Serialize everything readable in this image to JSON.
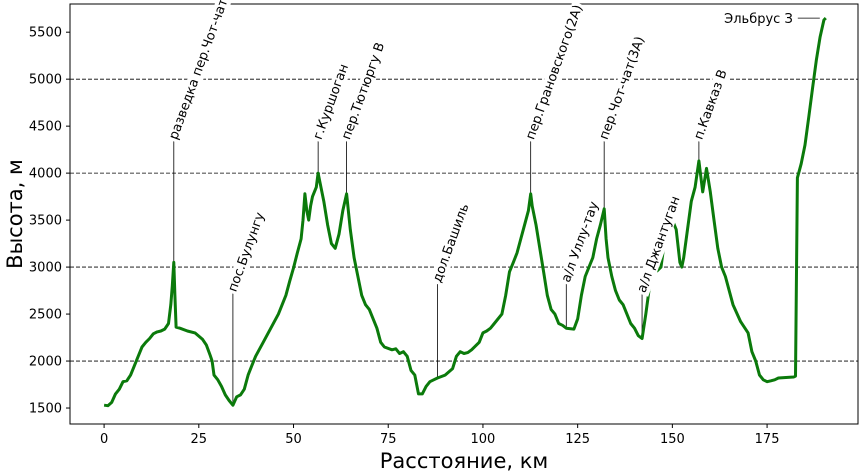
{
  "chart_data": {
    "type": "line",
    "xlabel": "Расстояние, км",
    "ylabel": "Высота, м",
    "xlim": [
      -9,
      199
    ],
    "ylim": [
      1330,
      5800
    ],
    "xticks": [
      0,
      25,
      50,
      75,
      100,
      125,
      150,
      175
    ],
    "yticks": [
      1500,
      2000,
      2500,
      3000,
      3500,
      4000,
      4500,
      5000,
      5500
    ],
    "dashed_gridlines_y": [
      2000,
      3000,
      4000,
      5000
    ],
    "line_color": "#0b7a0b",
    "series": [
      {
        "points": [
          [
            0,
            1530
          ],
          [
            1,
            1525
          ],
          [
            2,
            1560
          ],
          [
            3,
            1650
          ],
          [
            4,
            1700
          ],
          [
            5,
            1780
          ],
          [
            6,
            1790
          ],
          [
            7,
            1850
          ],
          [
            8,
            1950
          ],
          [
            9,
            2050
          ],
          [
            10,
            2150
          ],
          [
            11,
            2200
          ],
          [
            12,
            2240
          ],
          [
            13,
            2290
          ],
          [
            14,
            2310
          ],
          [
            15,
            2320
          ],
          [
            16,
            2340
          ],
          [
            17,
            2400
          ],
          [
            17.6,
            2600
          ],
          [
            18,
            2800
          ],
          [
            18.4,
            3050
          ],
          [
            18.7,
            2700
          ],
          [
            19,
            2360
          ],
          [
            20,
            2350
          ],
          [
            22,
            2320
          ],
          [
            24,
            2300
          ],
          [
            26,
            2230
          ],
          [
            27,
            2170
          ],
          [
            28,
            2060
          ],
          [
            28.5,
            2000
          ],
          [
            29,
            1850
          ],
          [
            30,
            1800
          ],
          [
            31,
            1730
          ],
          [
            32,
            1640
          ],
          [
            33,
            1580
          ],
          [
            34,
            1530
          ],
          [
            35,
            1620
          ],
          [
            36,
            1640
          ],
          [
            37,
            1700
          ],
          [
            38,
            1850
          ],
          [
            39,
            1950
          ],
          [
            40,
            2050
          ],
          [
            42,
            2200
          ],
          [
            44,
            2350
          ],
          [
            46,
            2500
          ],
          [
            48,
            2700
          ],
          [
            49,
            2850
          ],
          [
            50,
            2990
          ],
          [
            51,
            3150
          ],
          [
            52,
            3300
          ],
          [
            52.5,
            3500
          ],
          [
            53,
            3780
          ],
          [
            53.5,
            3600
          ],
          [
            54,
            3500
          ],
          [
            54.5,
            3650
          ],
          [
            55,
            3750
          ],
          [
            56,
            3850
          ],
          [
            56.5,
            4000
          ],
          [
            57,
            3900
          ],
          [
            58,
            3700
          ],
          [
            59,
            3450
          ],
          [
            60,
            3250
          ],
          [
            61,
            3200
          ],
          [
            62,
            3350
          ],
          [
            63,
            3600
          ],
          [
            64,
            3780
          ],
          [
            65,
            3400
          ],
          [
            66,
            3100
          ],
          [
            67,
            2900
          ],
          [
            68,
            2700
          ],
          [
            69,
            2600
          ],
          [
            70,
            2550
          ],
          [
            71,
            2450
          ],
          [
            72,
            2350
          ],
          [
            73,
            2200
          ],
          [
            74,
            2150
          ],
          [
            76,
            2120
          ],
          [
            77,
            2130
          ],
          [
            78,
            2080
          ],
          [
            79,
            2100
          ],
          [
            80,
            2050
          ],
          [
            81,
            1900
          ],
          [
            82,
            1850
          ],
          [
            83,
            1650
          ],
          [
            84,
            1650
          ],
          [
            85,
            1730
          ],
          [
            86,
            1780
          ],
          [
            87,
            1800
          ],
          [
            88,
            1820
          ],
          [
            90,
            1850
          ],
          [
            92,
            1920
          ],
          [
            93,
            2050
          ],
          [
            94,
            2100
          ],
          [
            95,
            2080
          ],
          [
            96,
            2090
          ],
          [
            97,
            2120
          ],
          [
            99,
            2200
          ],
          [
            100,
            2300
          ],
          [
            101,
            2320
          ],
          [
            102,
            2350
          ],
          [
            103,
            2400
          ],
          [
            105,
            2500
          ],
          [
            106,
            2700
          ],
          [
            107,
            2950
          ],
          [
            108,
            3050
          ],
          [
            109,
            3150
          ],
          [
            110,
            3300
          ],
          [
            111,
            3450
          ],
          [
            112,
            3600
          ],
          [
            112.6,
            3780
          ],
          [
            113,
            3650
          ],
          [
            114,
            3450
          ],
          [
            115,
            3200
          ],
          [
            116,
            2950
          ],
          [
            117,
            2700
          ],
          [
            118,
            2550
          ],
          [
            119,
            2500
          ],
          [
            120,
            2400
          ],
          [
            121,
            2380
          ],
          [
            122,
            2350
          ],
          [
            124,
            2340
          ],
          [
            125,
            2450
          ],
          [
            126,
            2700
          ],
          [
            127,
            2900
          ],
          [
            128,
            3000
          ],
          [
            129,
            3100
          ],
          [
            130,
            3300
          ],
          [
            131,
            3450
          ],
          [
            132,
            3620
          ],
          [
            132.5,
            3300
          ],
          [
            133,
            3100
          ],
          [
            134,
            2900
          ],
          [
            135,
            2750
          ],
          [
            136,
            2650
          ],
          [
            137,
            2600
          ],
          [
            138,
            2500
          ],
          [
            139,
            2400
          ],
          [
            140,
            2350
          ],
          [
            141,
            2270
          ],
          [
            142,
            2240
          ],
          [
            143,
            2500
          ],
          [
            144,
            2800
          ],
          [
            145,
            2950
          ],
          [
            146,
            2960
          ],
          [
            147,
            3000
          ],
          [
            148,
            3300
          ],
          [
            149,
            3450
          ],
          [
            150,
            3500
          ],
          [
            151,
            3400
          ],
          [
            152,
            3050
          ],
          [
            152.5,
            3000
          ],
          [
            153,
            3100
          ],
          [
            154,
            3400
          ],
          [
            155,
            3700
          ],
          [
            156,
            3850
          ],
          [
            157,
            4130
          ],
          [
            158,
            3800
          ],
          [
            159,
            4050
          ],
          [
            160,
            3800
          ],
          [
            161,
            3500
          ],
          [
            162,
            3200
          ],
          [
            163,
            3000
          ],
          [
            164,
            2900
          ],
          [
            165,
            2750
          ],
          [
            166,
            2600
          ],
          [
            168,
            2420
          ],
          [
            170,
            2300
          ],
          [
            171,
            2100
          ],
          [
            172,
            2000
          ],
          [
            173,
            1850
          ],
          [
            174,
            1800
          ],
          [
            175,
            1780
          ],
          [
            176,
            1790
          ],
          [
            177,
            1800
          ],
          [
            178,
            1820
          ],
          [
            182,
            1830
          ],
          [
            182.5,
            1840
          ],
          [
            183,
            3950
          ],
          [
            184,
            4100
          ],
          [
            185,
            4300
          ],
          [
            186,
            4600
          ],
          [
            187,
            4900
          ],
          [
            188,
            5200
          ],
          [
            189,
            5450
          ],
          [
            190,
            5630
          ],
          [
            190.5,
            5650
          ]
        ]
      }
    ],
    "annotations": [
      {
        "text": "разведка пер.Чот-чат",
        "x": 18.4,
        "y_line_top": 4370,
        "y_line_bottom": 3050
      },
      {
        "text": "пос.Булунгу",
        "x": 34,
        "y_line_top": 2750,
        "y_line_bottom": 1530
      },
      {
        "text": "г.Куршоган",
        "x": 56.5,
        "y_line_top": 4370,
        "y_line_bottom": 4000
      },
      {
        "text": "пер.Тютюргу В",
        "x": 64,
        "y_line_top": 4370,
        "y_line_bottom": 3780
      },
      {
        "text": "дол.Башиль",
        "x": 88,
        "y_line_top": 2850,
        "y_line_bottom": 1820
      },
      {
        "text": "пер.Грановского(2А)",
        "x": 112.6,
        "y_line_top": 4370,
        "y_line_bottom": 3780
      },
      {
        "text": "а/л Уллу-тау",
        "x": 122,
        "y_line_top": 2850,
        "y_line_bottom": 2350
      },
      {
        "text": "пер.Чот-чат(3А)",
        "x": 132,
        "y_line_top": 4370,
        "y_line_bottom": 3620
      },
      {
        "text": "а/л Джантуган",
        "x": 142,
        "y_line_top": 2740,
        "y_line_bottom": 2240
      },
      {
        "text": "п.Кавказ В",
        "x": 157,
        "y_line_top": 4370,
        "y_line_bottom": 4130
      },
      {
        "text": "Эльбрус З",
        "x": 190.5,
        "y": 5650
      }
    ]
  }
}
